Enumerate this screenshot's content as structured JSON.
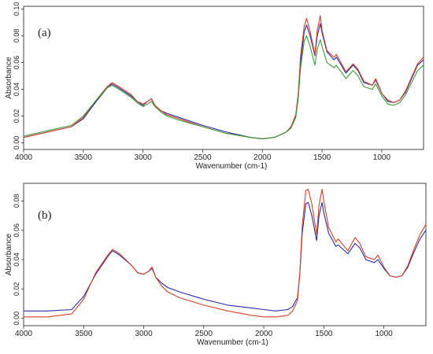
{
  "chart_data": [
    {
      "type": "line",
      "panel_label": "(a)",
      "xlabel": "Wavenumber (cm-1)",
      "ylabel": "Absorbance",
      "xlim": [
        4000,
        650
      ],
      "ylim": [
        -0.005,
        0.102
      ],
      "x_ticks": [
        {
          "value": 4000,
          "label": "4000"
        },
        {
          "value": 3500,
          "label": "3500"
        },
        {
          "value": 3000,
          "label": "3000"
        },
        {
          "value": 2500,
          "label": "2500"
        },
        {
          "value": 2000,
          "label": "2000"
        },
        {
          "value": 1500,
          "label": "1500"
        },
        {
          "value": 1000,
          "label": "1000"
        }
      ],
      "y_ticks": [
        {
          "value": 0.0,
          "label": "0.00"
        },
        {
          "value": 0.02,
          "label": "0.02"
        },
        {
          "value": 0.04,
          "label": "0.04"
        },
        {
          "value": 0.06,
          "label": "0.06"
        },
        {
          "value": 0.08,
          "label": "0.08"
        },
        {
          "value": 0.1,
          "label": "0.10"
        }
      ],
      "grid": false,
      "series": [
        {
          "color": "#2a2aa8",
          "x": [
            4000,
            3800,
            3600,
            3500,
            3400,
            3300,
            3260,
            3200,
            3100,
            3050,
            3000,
            2960,
            2930,
            2900,
            2850,
            2800,
            2700,
            2500,
            2300,
            2100,
            2000,
            1900,
            1800,
            1760,
            1720,
            1700,
            1680,
            1650,
            1630,
            1600,
            1560,
            1540,
            1515,
            1500,
            1460,
            1400,
            1380,
            1300,
            1240,
            1200,
            1150,
            1080,
            1050,
            1000,
            950,
            900,
            850,
            800,
            750,
            700,
            650
          ],
          "y": [
            0.004,
            0.008,
            0.012,
            0.018,
            0.03,
            0.041,
            0.044,
            0.041,
            0.035,
            0.031,
            0.028,
            0.031,
            0.033,
            0.028,
            0.024,
            0.022,
            0.019,
            0.013,
            0.008,
            0.004,
            0.003,
            0.004,
            0.008,
            0.012,
            0.02,
            0.035,
            0.06,
            0.083,
            0.088,
            0.08,
            0.065,
            0.08,
            0.089,
            0.082,
            0.068,
            0.062,
            0.064,
            0.052,
            0.058,
            0.054,
            0.045,
            0.043,
            0.047,
            0.037,
            0.031,
            0.03,
            0.032,
            0.038,
            0.048,
            0.058,
            0.062
          ]
        },
        {
          "color": "#d44024",
          "x": [
            4000,
            3800,
            3600,
            3500,
            3400,
            3300,
            3260,
            3200,
            3100,
            3050,
            3000,
            2960,
            2930,
            2900,
            2850,
            2800,
            2700,
            2500,
            2300,
            2100,
            2000,
            1900,
            1800,
            1760,
            1720,
            1700,
            1680,
            1650,
            1630,
            1600,
            1560,
            1540,
            1515,
            1500,
            1460,
            1400,
            1380,
            1300,
            1240,
            1200,
            1150,
            1080,
            1050,
            1000,
            950,
            900,
            850,
            800,
            750,
            700,
            650
          ],
          "y": [
            0.004,
            0.008,
            0.012,
            0.019,
            0.031,
            0.042,
            0.045,
            0.042,
            0.036,
            0.031,
            0.029,
            0.031,
            0.033,
            0.028,
            0.024,
            0.021,
            0.018,
            0.012,
            0.007,
            0.004,
            0.003,
            0.004,
            0.008,
            0.012,
            0.021,
            0.037,
            0.065,
            0.087,
            0.093,
            0.083,
            0.066,
            0.084,
            0.095,
            0.084,
            0.069,
            0.064,
            0.066,
            0.053,
            0.059,
            0.055,
            0.046,
            0.043,
            0.048,
            0.037,
            0.032,
            0.03,
            0.032,
            0.039,
            0.049,
            0.059,
            0.064
          ]
        },
        {
          "color": "#3a9a3a",
          "x": [
            4000,
            3800,
            3600,
            3500,
            3400,
            3300,
            3260,
            3200,
            3100,
            3050,
            3000,
            2960,
            2930,
            2900,
            2850,
            2800,
            2700,
            2500,
            2300,
            2100,
            2000,
            1900,
            1800,
            1760,
            1720,
            1700,
            1680,
            1650,
            1630,
            1600,
            1560,
            1540,
            1515,
            1500,
            1460,
            1400,
            1380,
            1300,
            1240,
            1200,
            1150,
            1080,
            1050,
            1000,
            950,
            900,
            850,
            800,
            750,
            700,
            650
          ],
          "y": [
            0.005,
            0.009,
            0.013,
            0.02,
            0.031,
            0.041,
            0.043,
            0.04,
            0.034,
            0.03,
            0.027,
            0.029,
            0.031,
            0.027,
            0.023,
            0.02,
            0.017,
            0.012,
            0.007,
            0.004,
            0.003,
            0.004,
            0.008,
            0.011,
            0.019,
            0.033,
            0.056,
            0.076,
            0.08,
            0.072,
            0.058,
            0.07,
            0.077,
            0.072,
            0.06,
            0.056,
            0.058,
            0.048,
            0.054,
            0.05,
            0.042,
            0.04,
            0.044,
            0.035,
            0.029,
            0.028,
            0.03,
            0.036,
            0.045,
            0.054,
            0.058
          ]
        }
      ]
    },
    {
      "type": "line",
      "panel_label": "(b)",
      "xlabel": "Wavenumber (cm-1)",
      "ylabel": "Absorbance",
      "xlim": [
        4000,
        650
      ],
      "ylim": [
        -0.005,
        0.092
      ],
      "x_ticks": [
        {
          "value": 4000,
          "label": "4000"
        },
        {
          "value": 3500,
          "label": "3500"
        },
        {
          "value": 3000,
          "label": "3000"
        },
        {
          "value": 2500,
          "label": "2500"
        },
        {
          "value": 2000,
          "label": "2000"
        },
        {
          "value": 1500,
          "label": "1500"
        },
        {
          "value": 1000,
          "label": "1000"
        }
      ],
      "y_ticks": [
        {
          "value": 0.0,
          "label": "0.00"
        },
        {
          "value": 0.02,
          "label": "0.02"
        },
        {
          "value": 0.04,
          "label": "0.04"
        },
        {
          "value": 0.06,
          "label": "0.06"
        },
        {
          "value": 0.08,
          "label": "0.08"
        }
      ],
      "grid": false,
      "series": [
        {
          "color": "#2a2aa8",
          "x": [
            4000,
            3800,
            3600,
            3500,
            3400,
            3300,
            3260,
            3200,
            3100,
            3050,
            3000,
            2960,
            2930,
            2900,
            2850,
            2800,
            2700,
            2500,
            2300,
            2100,
            2000,
            1900,
            1800,
            1760,
            1720,
            1700,
            1680,
            1650,
            1630,
            1600,
            1560,
            1540,
            1515,
            1500,
            1460,
            1400,
            1380,
            1300,
            1240,
            1200,
            1150,
            1080,
            1050,
            1000,
            950,
            900,
            850,
            800,
            750,
            700,
            650
          ],
          "y": [
            0.005,
            0.005,
            0.006,
            0.015,
            0.03,
            0.042,
            0.046,
            0.043,
            0.036,
            0.031,
            0.03,
            0.032,
            0.034,
            0.028,
            0.024,
            0.021,
            0.018,
            0.013,
            0.009,
            0.007,
            0.006,
            0.005,
            0.006,
            0.008,
            0.014,
            0.03,
            0.058,
            0.078,
            0.079,
            0.07,
            0.053,
            0.07,
            0.079,
            0.072,
            0.058,
            0.049,
            0.05,
            0.044,
            0.051,
            0.048,
            0.04,
            0.038,
            0.04,
            0.034,
            0.029,
            0.028,
            0.029,
            0.035,
            0.045,
            0.054,
            0.06
          ]
        },
        {
          "color": "#d44024",
          "x": [
            4000,
            3800,
            3600,
            3500,
            3400,
            3300,
            3260,
            3200,
            3100,
            3050,
            3000,
            2960,
            2930,
            2900,
            2850,
            2800,
            2700,
            2500,
            2300,
            2100,
            2000,
            1900,
            1800,
            1760,
            1720,
            1700,
            1680,
            1650,
            1630,
            1600,
            1560,
            1540,
            1515,
            1500,
            1460,
            1400,
            1380,
            1300,
            1240,
            1200,
            1150,
            1080,
            1050,
            1000,
            950,
            900,
            850,
            800,
            750,
            700,
            650
          ],
          "y": [
            0.001,
            0.001,
            0.003,
            0.013,
            0.031,
            0.043,
            0.047,
            0.044,
            0.036,
            0.031,
            0.03,
            0.032,
            0.035,
            0.028,
            0.022,
            0.018,
            0.014,
            0.009,
            0.005,
            0.002,
            0.001,
            0.001,
            0.002,
            0.005,
            0.012,
            0.03,
            0.063,
            0.087,
            0.088,
            0.078,
            0.057,
            0.077,
            0.088,
            0.08,
            0.062,
            0.052,
            0.054,
            0.046,
            0.055,
            0.051,
            0.042,
            0.04,
            0.043,
            0.035,
            0.029,
            0.028,
            0.029,
            0.036,
            0.047,
            0.057,
            0.064
          ]
        }
      ]
    }
  ]
}
